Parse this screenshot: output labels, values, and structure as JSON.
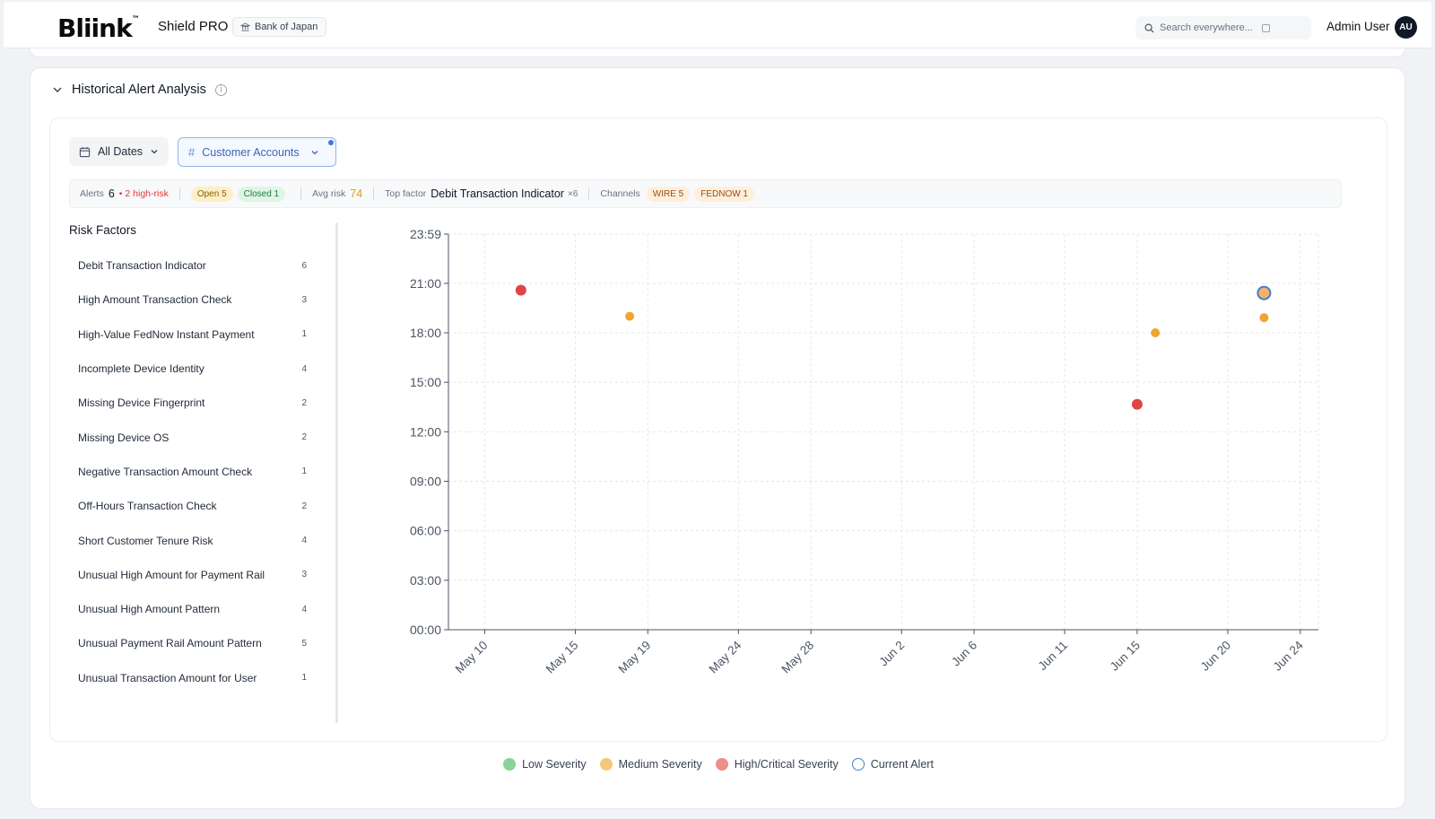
{
  "header": {
    "logo_text": "Bliink",
    "logo_mark": "™",
    "product": "Shield PRO",
    "org": "Bank of Japan",
    "org_icon": "bank-icon",
    "search_placeholder": "Search everywhere...",
    "user_name": "Admin User",
    "user_initials": "AU"
  },
  "section": {
    "title": "Historical Alert Analysis",
    "collapse_icon": "chevron-down-icon",
    "info_icon": "info-icon"
  },
  "filters": {
    "dates_label": "All Dates",
    "accounts_label": "Customer Accounts",
    "accounts_active": true
  },
  "stats": {
    "alerts_label": "Alerts",
    "alerts_value": "6",
    "high_risk": "• 2 high-risk",
    "open": "Open 5",
    "closed": "Closed 1",
    "avg_risk_label": "Avg risk",
    "avg_risk_value": "74",
    "top_factor_label": "Top factor",
    "top_factor_value": "Debit Transaction Indicator",
    "top_factor_count": "×6",
    "channels_label": "Channels",
    "channels": [
      "WIRE 5",
      "FEDNOW 1"
    ]
  },
  "risk_factors": {
    "title": "Risk Factors",
    "items": [
      {
        "label": "Debit Transaction Indicator",
        "count": "6"
      },
      {
        "label": "High Amount Transaction Check",
        "count": "3"
      },
      {
        "label": "High-Value FedNow Instant Payment",
        "count": "1"
      },
      {
        "label": "Incomplete Device Identity",
        "count": "4"
      },
      {
        "label": "Missing Device Fingerprint",
        "count": "2"
      },
      {
        "label": "Missing Device OS",
        "count": "2"
      },
      {
        "label": "Negative Transaction Amount Check",
        "count": "1"
      },
      {
        "label": "Off-Hours Transaction Check",
        "count": "2"
      },
      {
        "label": "Short Customer Tenure Risk",
        "count": "4"
      },
      {
        "label": "Unusual High Amount for Payment Rail",
        "count": "3"
      },
      {
        "label": "Unusual High Amount Pattern",
        "count": "4"
      },
      {
        "label": "Unusual Payment Rail Amount Pattern",
        "count": "5"
      },
      {
        "label": "Unusual Transaction Amount for User",
        "count": "1"
      }
    ]
  },
  "chart_data": {
    "type": "scatter",
    "x_type": "date",
    "xlim": [
      "2025-05-08",
      "2025-06-25"
    ],
    "ylim": [
      0,
      1439
    ],
    "y_unit": "minutes of day",
    "x_ticks": [
      {
        "label": "May 10",
        "date": "2025-05-10"
      },
      {
        "label": "May 15",
        "date": "2025-05-15"
      },
      {
        "label": "May 19",
        "date": "2025-05-19"
      },
      {
        "label": "May 24",
        "date": "2025-05-24"
      },
      {
        "label": "May 28",
        "date": "2025-05-28"
      },
      {
        "label": "Jun 2",
        "date": "2025-06-02"
      },
      {
        "label": "Jun 6",
        "date": "2025-06-06"
      },
      {
        "label": "Jun 11",
        "date": "2025-06-11"
      },
      {
        "label": "Jun 15",
        "date": "2025-06-15"
      },
      {
        "label": "Jun 20",
        "date": "2025-06-20"
      },
      {
        "label": "Jun 24",
        "date": "2025-06-24"
      }
    ],
    "y_ticks": [
      {
        "label": "00:00",
        "value": 0
      },
      {
        "label": "03:00",
        "value": 180
      },
      {
        "label": "06:00",
        "value": 360
      },
      {
        "label": "09:00",
        "value": 540
      },
      {
        "label": "12:00",
        "value": 720
      },
      {
        "label": "15:00",
        "value": 900
      },
      {
        "label": "18:00",
        "value": 1080
      },
      {
        "label": "21:00",
        "value": 1260
      },
      {
        "label": "23:59",
        "value": 1439
      }
    ],
    "grid": true,
    "points": [
      {
        "date": "2025-05-12",
        "time": "20:35",
        "severity": "high"
      },
      {
        "date": "2025-05-18",
        "time": "19:00",
        "severity": "medium"
      },
      {
        "date": "2025-06-15",
        "time": "13:40",
        "severity": "high"
      },
      {
        "date": "2025-06-16",
        "time": "18:00",
        "severity": "medium"
      },
      {
        "date": "2025-06-22",
        "time": "20:25",
        "severity": "medium",
        "current": true
      },
      {
        "date": "2025-06-22",
        "time": "18:55",
        "severity": "medium"
      }
    ],
    "colors": {
      "low": "#6ccf8a",
      "medium": "#f0a531",
      "high": "#e04545",
      "current_ring": "#4a7cc9",
      "current_fill": "#f2b26a"
    }
  },
  "legend": [
    {
      "label": "Low Severity",
      "color": "#86d49a",
      "outline": false
    },
    {
      "label": "Medium Severity",
      "color": "#f7c77a",
      "outline": false
    },
    {
      "label": "High/Critical Severity",
      "color": "#ef8c8c",
      "outline": false
    },
    {
      "label": "Current Alert",
      "color": "#4a7cc9",
      "outline": true
    }
  ]
}
